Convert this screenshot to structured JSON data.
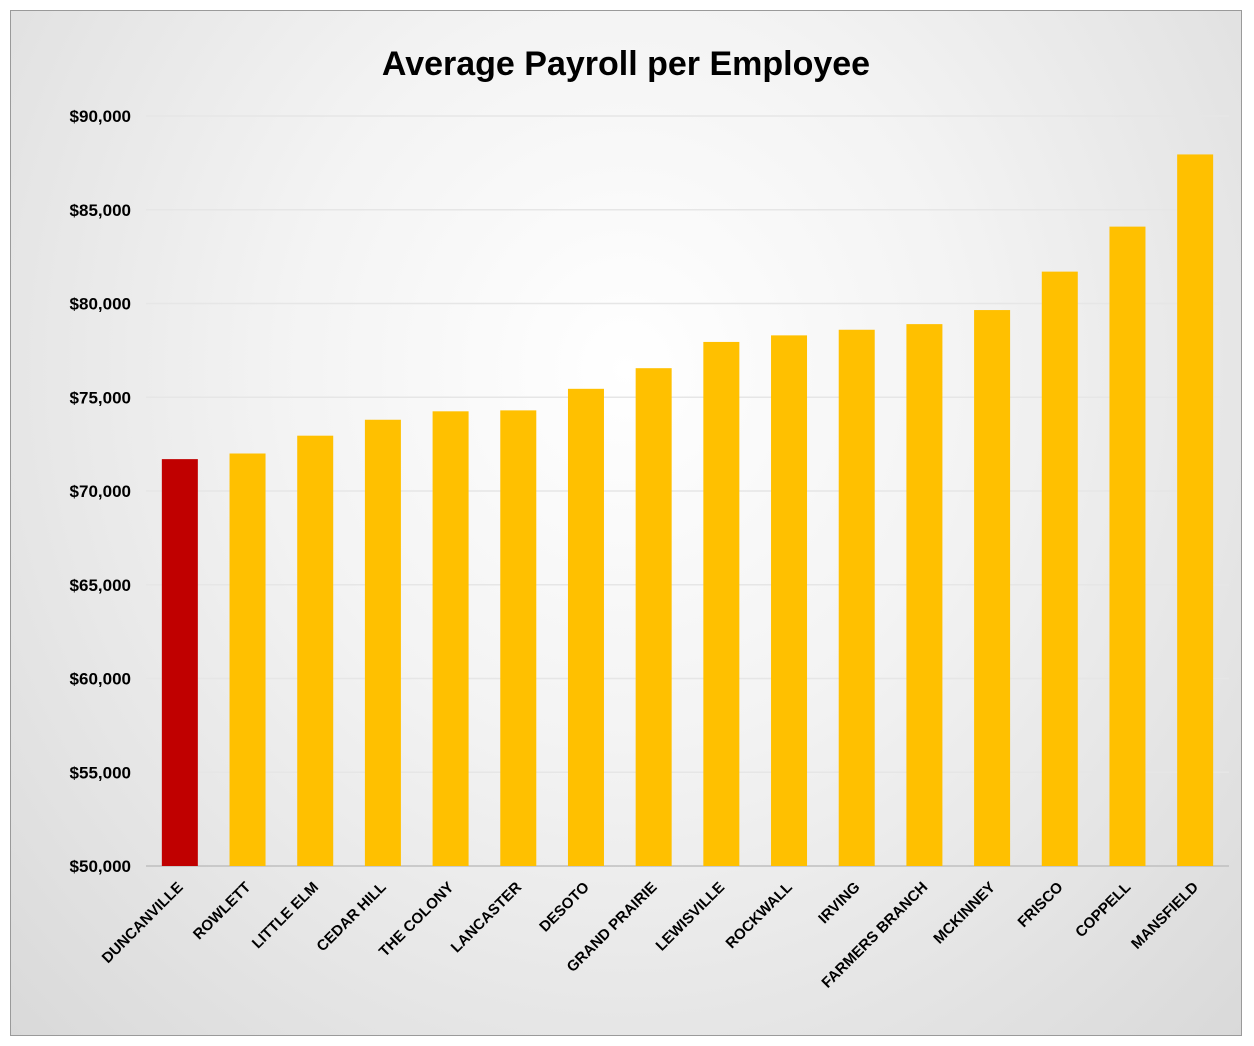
{
  "chart_data": {
    "type": "bar",
    "title": "Average Payroll per Employee",
    "xlabel": "",
    "ylabel": "",
    "categories": [
      "DUNCANVILLE",
      "ROWLETT",
      "LITTLE ELM",
      "CEDAR HILL",
      "THE COLONY",
      "LANCASTER",
      "DESOTO",
      "GRAND PRAIRIE",
      "LEWISVILLE",
      "ROCKWALL",
      "IRVING",
      "FARMERS BRANCH",
      "MCKINNEY",
      "FRISCO",
      "COPPELL",
      "MANSFIELD"
    ],
    "values": [
      71700,
      72000,
      72950,
      73800,
      74250,
      74300,
      75450,
      76550,
      77950,
      78300,
      78600,
      78900,
      79650,
      81700,
      84100,
      87950
    ],
    "ylim": [
      50000,
      90000
    ],
    "yticks": [
      50000,
      55000,
      60000,
      65000,
      70000,
      75000,
      80000,
      85000,
      90000
    ],
    "ytick_labels": [
      "$50,000",
      "$55,000",
      "$60,000",
      "$65,000",
      "$70,000",
      "$75,000",
      "$80,000",
      "$85,000",
      "$90,000"
    ],
    "grid": true,
    "legend": "none",
    "colors": {
      "highlight": "#C00000",
      "default": "#FFC000",
      "gridline": "#e6e6e6"
    },
    "highlight_category": "DUNCANVILLE"
  }
}
